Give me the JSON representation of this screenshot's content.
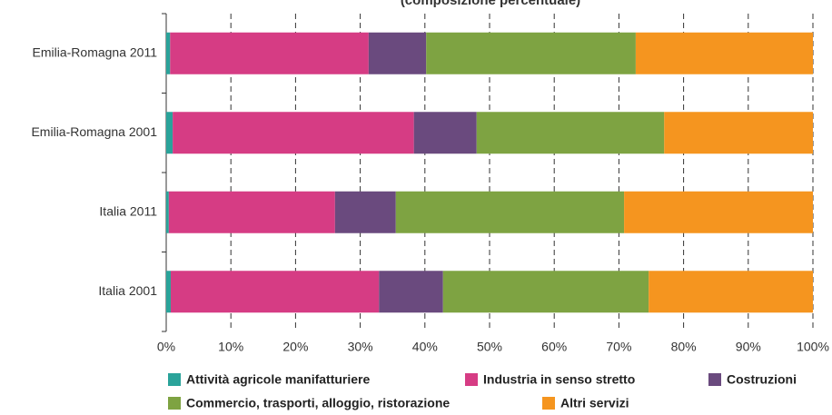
{
  "chart_data": {
    "type": "bar",
    "orientation": "horizontal",
    "stacked": true,
    "title": "(composizione percentuale)",
    "categories": [
      "Emilia-Romagna 2011",
      "Emilia-Romagna 2001",
      "Italia 2011",
      "Italia 2001"
    ],
    "series": [
      {
        "name": "Attività agricole manifatturiere",
        "color": "#2aa39a",
        "values": [
          0.6,
          1.0,
          0.4,
          0.7
        ]
      },
      {
        "name": "Industria in senso stretto",
        "color": "#d63c84",
        "values": [
          30.7,
          37.3,
          25.7,
          32.2
        ]
      },
      {
        "name": "Costruzioni",
        "color": "#6a4a7e",
        "values": [
          8.9,
          9.7,
          9.4,
          9.9
        ]
      },
      {
        "name": "Commercio, trasporti, alloggio, ristorazione",
        "color": "#7ea342",
        "values": [
          32.4,
          29.0,
          35.3,
          31.8
        ]
      },
      {
        "name": "Altri servizi",
        "color": "#f5951f",
        "values": [
          27.4,
          23.0,
          29.2,
          25.4
        ]
      }
    ],
    "xlim": [
      0,
      100
    ],
    "xticks": [
      {
        "value": 0,
        "label": "0%"
      },
      {
        "value": 10,
        "label": "10%"
      },
      {
        "value": 20,
        "label": "20%"
      },
      {
        "value": 30,
        "label": "30%"
      },
      {
        "value": 40,
        "label": "40%"
      },
      {
        "value": 50,
        "label": "50%"
      },
      {
        "value": 60,
        "label": "60%"
      },
      {
        "value": 70,
        "label": "70%"
      },
      {
        "value": 80,
        "label": "80%"
      },
      {
        "value": 90,
        "label": "90%"
      },
      {
        "value": 100,
        "label": "100%"
      }
    ],
    "grid": true
  }
}
